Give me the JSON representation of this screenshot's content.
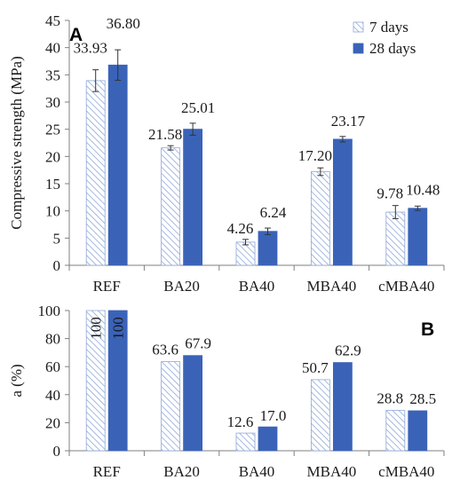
{
  "chart_data": [
    {
      "type": "bar",
      "panel_label": "A",
      "categories": [
        "REF",
        "BA20",
        "BA40",
        "MBA40",
        "cMBA40"
      ],
      "ylabel": "Compressive strength (MPa)",
      "ylim": [
        0,
        45
      ],
      "yticks": [
        0,
        5,
        10,
        15,
        20,
        25,
        30,
        35,
        40,
        45
      ],
      "legend_position": "top-right",
      "series": [
        {
          "name": "7 days",
          "fill": "hatched",
          "color": "#8fa8d8",
          "values": [
            33.93,
            21.58,
            4.26,
            17.2,
            9.78
          ],
          "errors": [
            2.0,
            0.4,
            0.5,
            0.7,
            1.2
          ],
          "labels": [
            "33.93",
            "21.58",
            "4.26",
            "17.20",
            "9.78"
          ]
        },
        {
          "name": "28 days",
          "fill": "solid",
          "color": "#3a63b8",
          "values": [
            36.8,
            25.01,
            6.24,
            23.17,
            10.48
          ],
          "errors": [
            2.8,
            1.1,
            0.6,
            0.5,
            0.4
          ],
          "labels": [
            "36.80",
            "25.01",
            "6.24",
            "23.17",
            "10.48"
          ]
        }
      ]
    },
    {
      "type": "bar",
      "panel_label": "B",
      "categories": [
        "REF",
        "BA20",
        "BA40",
        "MBA40",
        "cMBA40"
      ],
      "ylabel": "a (%)",
      "ylim": [
        0,
        100
      ],
      "yticks": [
        0,
        20,
        40,
        60,
        80,
        100
      ],
      "series": [
        {
          "name": "7 days",
          "fill": "hatched",
          "color": "#8fa8d8",
          "values": [
            100,
            63.6,
            12.6,
            50.7,
            28.8
          ],
          "labels": [
            "100",
            "63.6",
            "12.6",
            "50.7",
            "28.8"
          ]
        },
        {
          "name": "28 days",
          "fill": "solid",
          "color": "#3a63b8",
          "values": [
            100,
            67.9,
            17.0,
            62.9,
            28.5
          ],
          "labels": [
            "100",
            "67.9",
            "17.0",
            "62.9",
            "28.5"
          ]
        }
      ]
    }
  ]
}
